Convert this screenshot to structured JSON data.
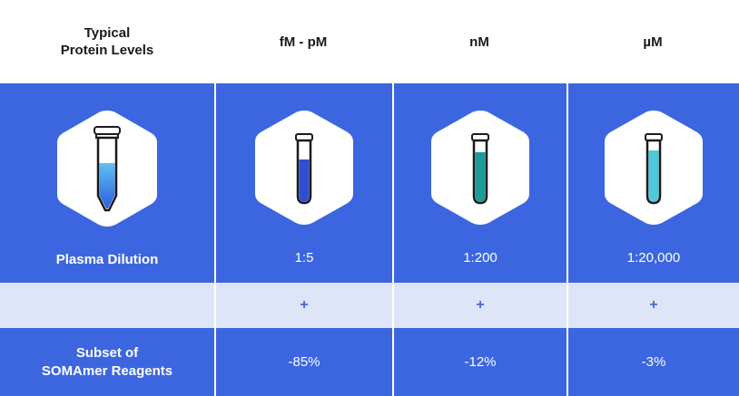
{
  "header": {
    "col0_line1": "Typical",
    "col0_line2": "Protein Levels",
    "col1": "fM - pM",
    "col2": "nM",
    "col3": "µM"
  },
  "dilution": {
    "label": "Plasma Dilution",
    "values": [
      "1:5",
      "1:200",
      "1:20,000"
    ]
  },
  "plus_row": [
    "+",
    "+",
    "+"
  ],
  "subset": {
    "label_line1": "Subset of",
    "label_line2": "SOMAmer Reagents",
    "values": [
      "-85%",
      "-12%",
      "-3%"
    ]
  },
  "colors": {
    "blue_band": "#3c66e0",
    "light_band": "#dfe5f8",
    "tube_dark_blue": "#2f4fd0",
    "tube_teal": "#1e9a98",
    "tube_cyan": "#4ec8dc"
  },
  "icons": [
    "hexagon-icon",
    "centrifuge-tube-icon",
    "test-tube-icon"
  ]
}
